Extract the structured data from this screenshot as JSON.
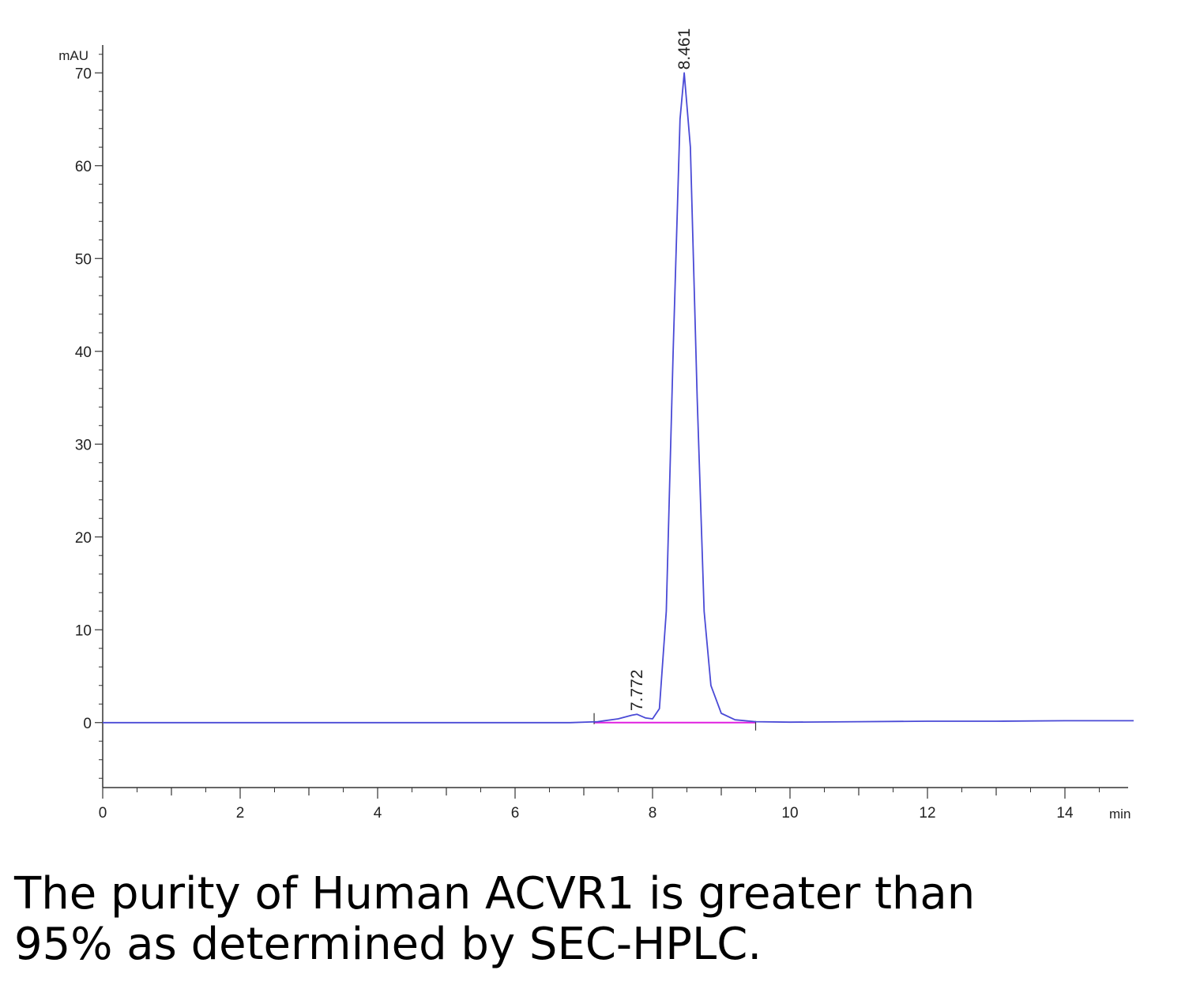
{
  "chart_data": {
    "type": "line",
    "title": "",
    "xlabel": "min",
    "ylabel": "mAU",
    "xlim": [
      0,
      15
    ],
    "ylim": [
      -7,
      73
    ],
    "x_ticks": [
      0,
      2,
      4,
      6,
      8,
      10,
      12,
      14
    ],
    "y_ticks": [
      0,
      10,
      20,
      30,
      40,
      50,
      60,
      70
    ],
    "x_tick_labels": [
      "0",
      "2",
      "4",
      "6",
      "8",
      "10",
      "12",
      "14"
    ],
    "y_tick_labels": [
      "0",
      "10",
      "20",
      "30",
      "40",
      "50",
      "60",
      "70"
    ],
    "grid": false,
    "series": [
      {
        "color": "#4a4ad6",
        "x": [
          0,
          1,
          2,
          3,
          4,
          5,
          6,
          6.8,
          7.2,
          7.5,
          7.7,
          7.772,
          7.9,
          8.0,
          8.1,
          8.2,
          8.3,
          8.4,
          8.461,
          8.55,
          8.65,
          8.75,
          8.85,
          9.0,
          9.2,
          9.5,
          10,
          11,
          12,
          13,
          14,
          15
        ],
        "y": [
          0,
          0,
          0,
          0,
          0,
          0,
          0,
          0,
          0.1,
          0.4,
          0.8,
          0.9,
          0.5,
          0.4,
          1.5,
          12,
          40,
          65,
          70,
          62,
          35,
          12,
          4,
          1,
          0.3,
          0.1,
          0.05,
          0.1,
          0.15,
          0.15,
          0.2,
          0.2
        ]
      }
    ],
    "baseline": {
      "color": "#e020e0",
      "x": [
        7.15,
        9.5
      ],
      "y": [
        0,
        0
      ]
    },
    "peak_labels": [
      {
        "label": "7.772",
        "x": 7.772,
        "y": 0.9
      },
      {
        "label": "8.461",
        "x": 8.461,
        "y": 70
      }
    ]
  },
  "caption": {
    "line1": "The purity of Human ACVR1 is greater than",
    "line2": "95% as determined by SEC-HPLC."
  }
}
